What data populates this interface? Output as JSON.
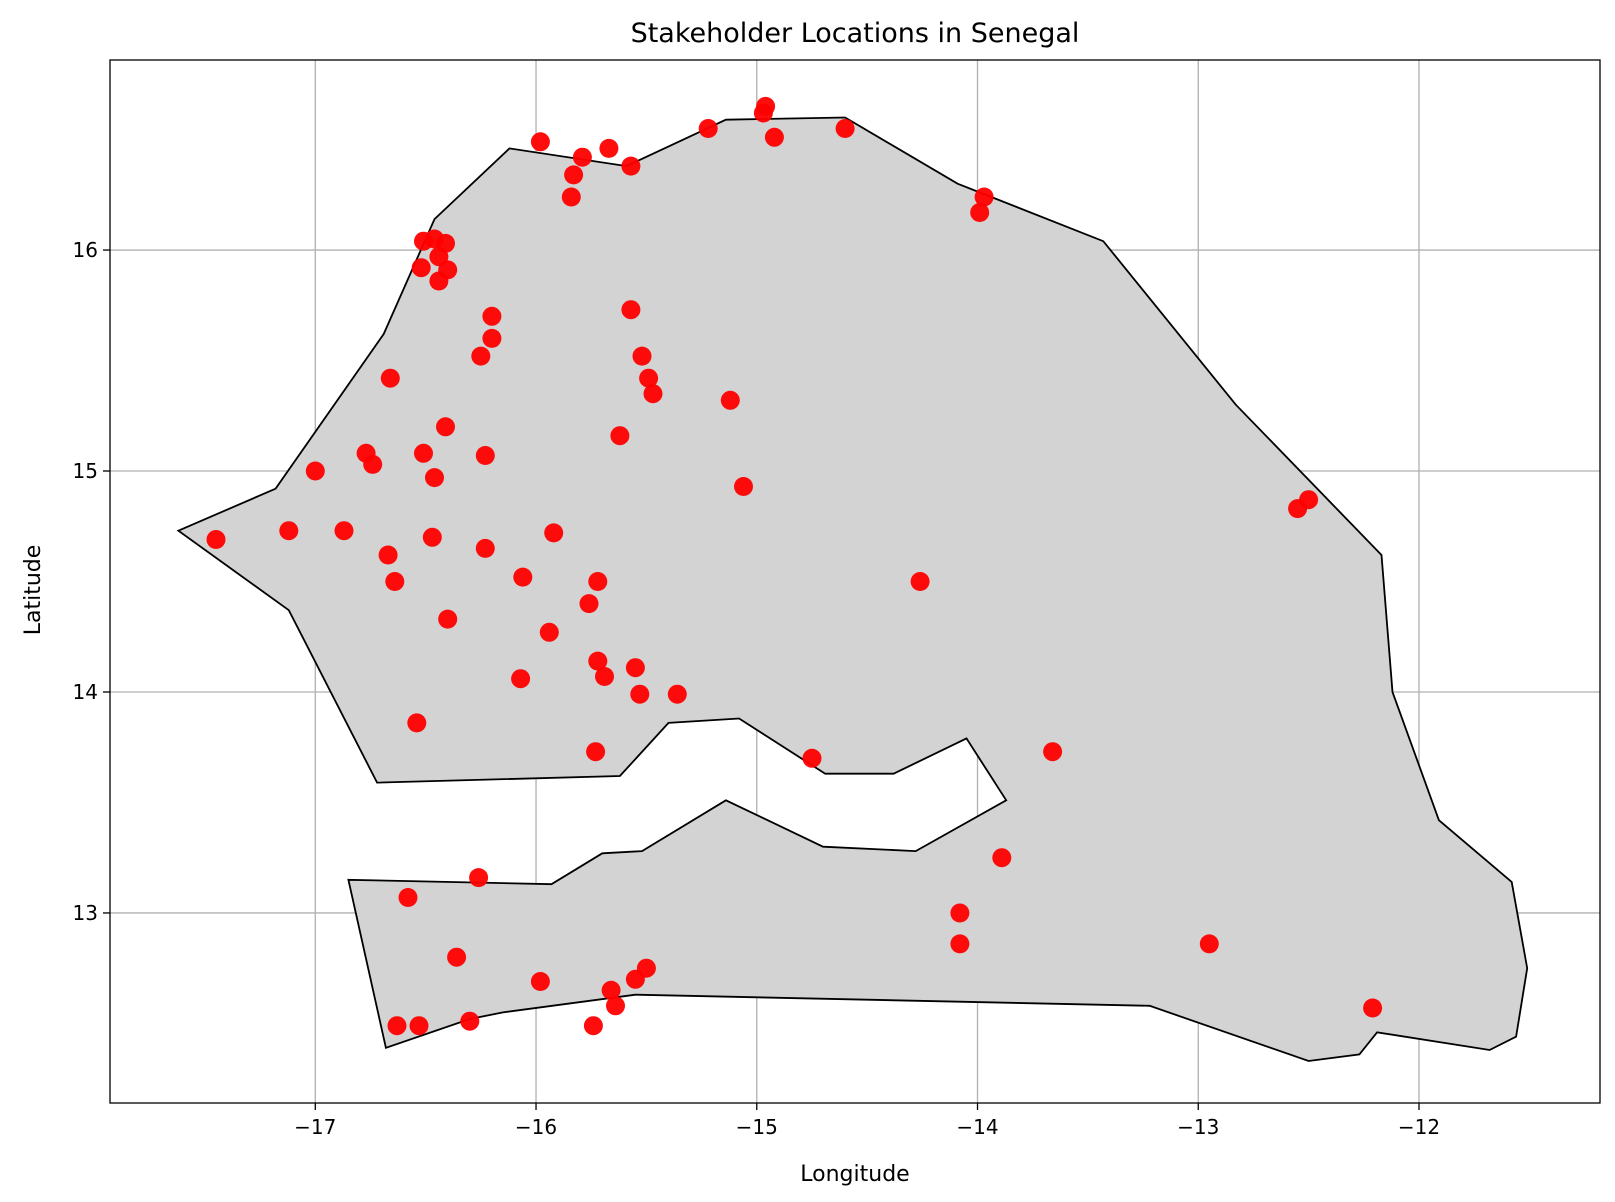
{
  "chart_data": {
    "type": "scatter",
    "title": "Stakeholder Locations in Senegal",
    "xlabel": "Longitude",
    "ylabel": "Latitude",
    "xlim": [
      -17.93,
      -11.18
    ],
    "ylim": [
      12.14,
      16.86
    ],
    "x_ticks": [
      -17,
      -16,
      -15,
      -14,
      -13,
      -12
    ],
    "y_ticks": [
      13,
      14,
      15,
      16
    ],
    "x_tick_labels": [
      "−17",
      "−16",
      "−15",
      "−14",
      "−13",
      "−12"
    ],
    "y_tick_labels": [
      "13",
      "14",
      "15",
      "16"
    ],
    "grid": true,
    "marker_color": "#ff0000",
    "region_fill": "#d3d3d3",
    "region_edge": "#000000",
    "region_outline": [
      [
        -17.62,
        14.73
      ],
      [
        -17.18,
        14.92
      ],
      [
        -16.69,
        15.62
      ],
      [
        -16.46,
        16.14
      ],
      [
        -16.12,
        16.46
      ],
      [
        -15.59,
        16.38
      ],
      [
        -15.14,
        16.59
      ],
      [
        -14.6,
        16.6
      ],
      [
        -14.09,
        16.3
      ],
      [
        -13.43,
        16.04
      ],
      [
        -12.83,
        15.3
      ],
      [
        -12.17,
        14.62
      ],
      [
        -12.12,
        14.0
      ],
      [
        -11.91,
        13.42
      ],
      [
        -11.58,
        13.14
      ],
      [
        -11.51,
        12.75
      ],
      [
        -11.56,
        12.44
      ],
      [
        -11.68,
        12.38
      ],
      [
        -12.19,
        12.46
      ],
      [
        -12.27,
        12.36
      ],
      [
        -12.5,
        12.33
      ],
      [
        -13.22,
        12.58
      ],
      [
        -15.55,
        12.63
      ],
      [
        -16.15,
        12.55
      ],
      [
        -16.3,
        12.52
      ],
      [
        -16.68,
        12.39
      ],
      [
        -16.85,
        13.15
      ],
      [
        -15.93,
        13.13
      ],
      [
        -15.7,
        13.27
      ],
      [
        -15.52,
        13.28
      ],
      [
        -15.14,
        13.51
      ],
      [
        -14.7,
        13.3
      ],
      [
        -14.28,
        13.28
      ],
      [
        -13.87,
        13.51
      ],
      [
        -14.05,
        13.79
      ],
      [
        -14.38,
        13.63
      ],
      [
        -14.69,
        13.63
      ],
      [
        -15.08,
        13.88
      ],
      [
        -15.4,
        13.86
      ],
      [
        -15.62,
        13.62
      ],
      [
        -16.72,
        13.59
      ],
      [
        -17.12,
        14.37
      ]
    ],
    "points": [
      [
        -15.98,
        16.49
      ],
      [
        -15.79,
        16.42
      ],
      [
        -15.67,
        16.46
      ],
      [
        -15.83,
        16.34
      ],
      [
        -15.84,
        16.24
      ],
      [
        -15.57,
        16.38
      ],
      [
        -15.22,
        16.55
      ],
      [
        -14.96,
        16.65
      ],
      [
        -14.97,
        16.62
      ],
      [
        -14.92,
        16.51
      ],
      [
        -14.6,
        16.55
      ],
      [
        -13.97,
        16.24
      ],
      [
        -13.99,
        16.17
      ],
      [
        -16.51,
        16.04
      ],
      [
        -16.46,
        16.05
      ],
      [
        -16.41,
        16.03
      ],
      [
        -16.44,
        15.97
      ],
      [
        -16.52,
        15.92
      ],
      [
        -16.4,
        15.91
      ],
      [
        -16.44,
        15.86
      ],
      [
        -16.2,
        15.7
      ],
      [
        -15.57,
        15.73
      ],
      [
        -16.2,
        15.6
      ],
      [
        -16.25,
        15.52
      ],
      [
        -15.52,
        15.52
      ],
      [
        -16.66,
        15.42
      ],
      [
        -15.49,
        15.42
      ],
      [
        -15.47,
        15.35
      ],
      [
        -15.12,
        15.32
      ],
      [
        -16.41,
        15.2
      ],
      [
        -15.62,
        15.16
      ],
      [
        -16.77,
        15.08
      ],
      [
        -16.51,
        15.08
      ],
      [
        -16.23,
        15.07
      ],
      [
        -16.74,
        15.03
      ],
      [
        -17.0,
        15.0
      ],
      [
        -16.46,
        14.97
      ],
      [
        -15.06,
        14.93
      ],
      [
        -12.55,
        14.83
      ],
      [
        -12.5,
        14.87
      ],
      [
        -17.45,
        14.69
      ],
      [
        -17.12,
        14.73
      ],
      [
        -16.87,
        14.73
      ],
      [
        -16.47,
        14.7
      ],
      [
        -15.92,
        14.72
      ],
      [
        -16.23,
        14.65
      ],
      [
        -16.67,
        14.62
      ],
      [
        -16.64,
        14.5
      ],
      [
        -16.06,
        14.52
      ],
      [
        -15.72,
        14.5
      ],
      [
        -14.26,
        14.5
      ],
      [
        -15.76,
        14.4
      ],
      [
        -16.4,
        14.33
      ],
      [
        -15.94,
        14.27
      ],
      [
        -15.72,
        14.14
      ],
      [
        -15.55,
        14.11
      ],
      [
        -15.69,
        14.07
      ],
      [
        -16.07,
        14.06
      ],
      [
        -15.53,
        13.99
      ],
      [
        -15.36,
        13.99
      ],
      [
        -16.54,
        13.86
      ],
      [
        -15.73,
        13.73
      ],
      [
        -14.75,
        13.7
      ],
      [
        -13.66,
        13.73
      ],
      [
        -16.26,
        13.16
      ],
      [
        -13.89,
        13.25
      ],
      [
        -16.58,
        13.07
      ],
      [
        -14.08,
        13.0
      ],
      [
        -14.08,
        12.86
      ],
      [
        -12.95,
        12.86
      ],
      [
        -16.36,
        12.8
      ],
      [
        -15.98,
        12.69
      ],
      [
        -15.55,
        12.7
      ],
      [
        -15.5,
        12.75
      ],
      [
        -15.66,
        12.65
      ],
      [
        -15.64,
        12.58
      ],
      [
        -12.21,
        12.57
      ],
      [
        -16.63,
        12.49
      ],
      [
        -16.53,
        12.49
      ],
      [
        -16.3,
        12.51
      ],
      [
        -15.74,
        12.49
      ]
    ]
  }
}
